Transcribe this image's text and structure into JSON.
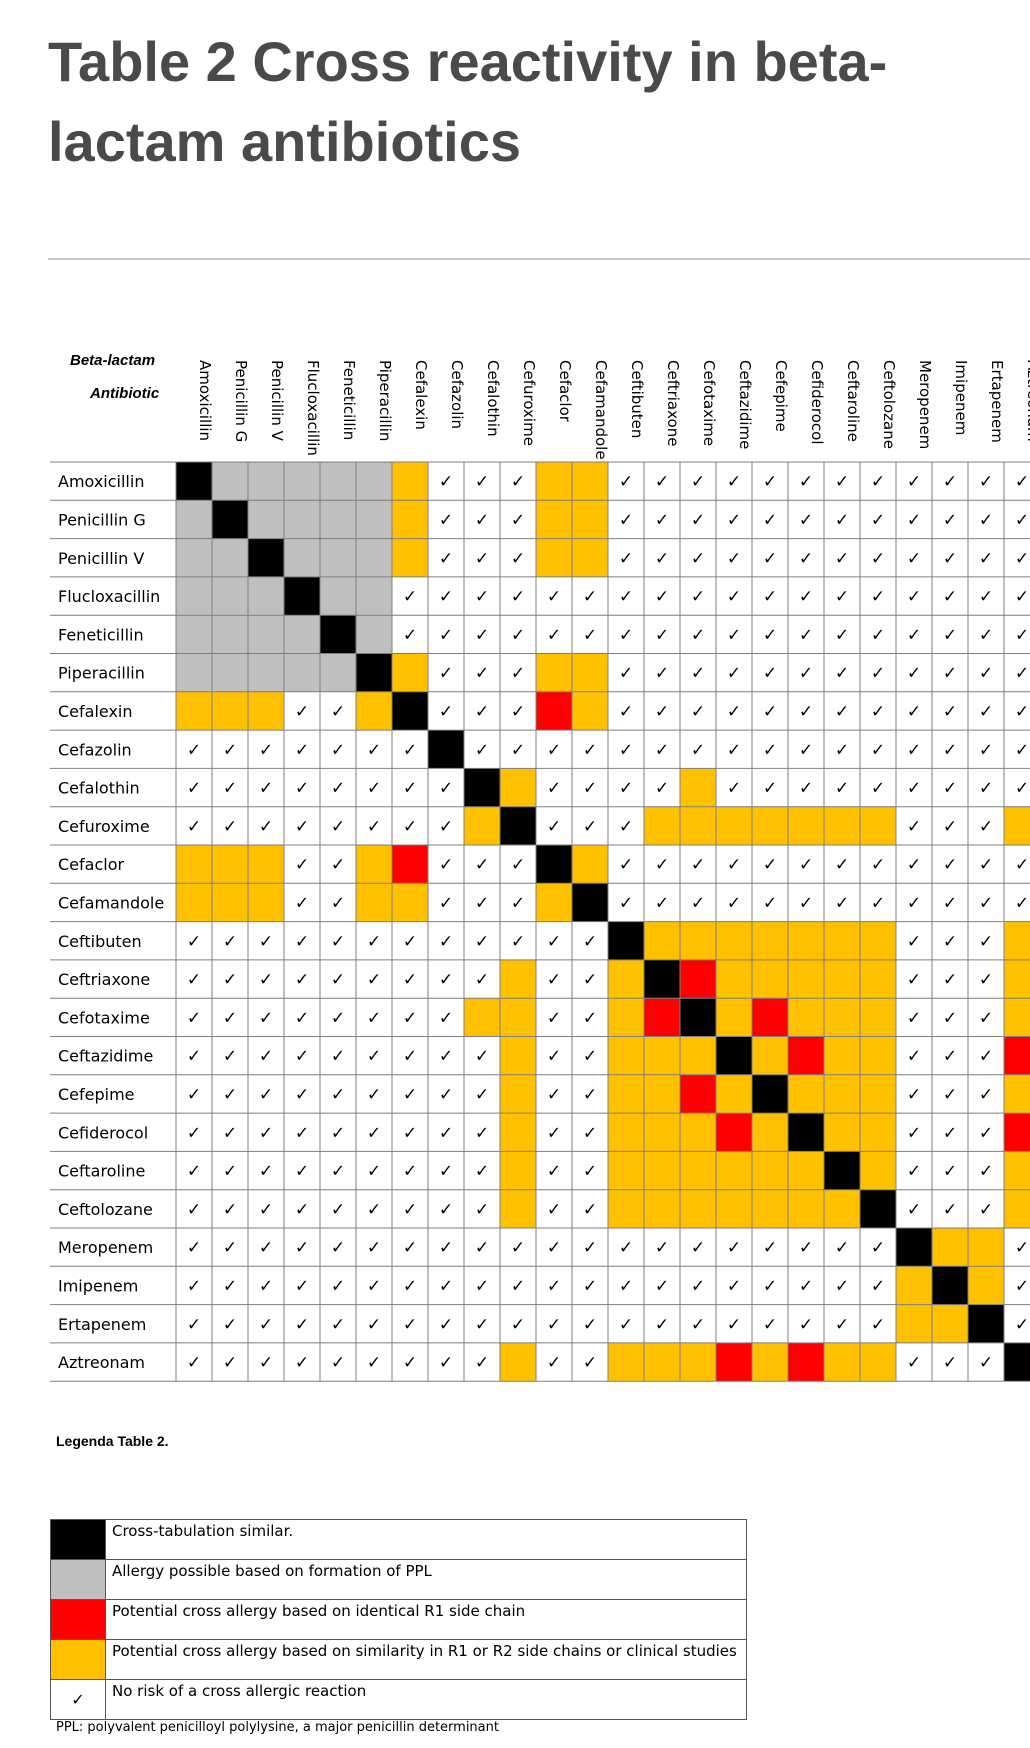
{
  "title": "Table 2  Cross reactivity in beta-lactam antibiotics",
  "corner_label_line1": "Beta-lactam",
  "corner_label_line2": "Antibiotic",
  "drugs": [
    "Amoxicillin",
    "Penicillin G",
    "Penicillin V",
    "Flucloxacillin",
    "Feneticillin",
    "Piperacillin",
    "Cefalexin",
    "Cefazolin",
    "Cefalothin",
    "Cefuroxime",
    "Cefaclor",
    "Cefamandole",
    "Ceftibuten",
    "Ceftriaxone",
    "Cefotaxime",
    "Ceftazidime",
    "Cefepime",
    "Cefiderocol",
    "Ceftaroline",
    "Ceftolozane",
    "Meropenem",
    "Imipenem",
    "Ertapenem",
    "Aztreonam"
  ],
  "category_key": {
    "B": "Cross-tabulation similar",
    "G": "Allergy possible based on formation of PPL",
    "R": "Potential cross allergy based on identical R1 side chain",
    "Y": "Potential cross allergy based on similarity in R1 or R2 side chains or clinical studies",
    "C": "No risk of a cross allergic reaction"
  },
  "matrix": [
    "BGGGGGYCCCYYCCCCCCCCCCCC",
    "GBGGGGYCCCYYCCCCCCCCCCCC",
    "GGBGGGYCCCYYCCCCCCCCCCCC",
    "GGGBGGCCCCCCCCCCCCCCCCCC",
    "GGGGBGCCCCCCCCCCCCCCCCCC",
    "GGGGGBYCCCYYCCCCCCCCCCCC",
    "YYYCCYBCCCRYCCCCCCCCCCCC",
    "CCCCCCCBCCCCCCCCCCCCCCCC",
    "CCCCCCCCBYCCCCYCCCCCCCCC",
    "CCCCCCCCYBCCCYYYYYYYCCCY",
    "YYYCCYRCCCBYCCCCCCCCCCCC",
    "YYYCCYYCCCYBCCCCCCCCCCCC",
    "CCCCCCCCCCCCBYYYYYYYCCCY",
    "CCCCCCCCCYCCYBRYYYYYCCCY",
    "CCCCCCCCYYCCYRBYRYYYCCCY",
    "CCCCCCCCCYCCYYYBYRYYCCCR",
    "CCCCCCCCCYCCYYRYBYYYCCCY",
    "CCCCCCCCCYCCYYYRYBYYCCCR",
    "CCCCCCCCCYCCYYYYYYBYCCCY",
    "CCCCCCCCCYCCYYYYYYYBCCCY",
    "CCCCCCCCCCCCCCCCCCCCBYYC",
    "CCCCCCCCCCCCCCCCCCCCYBYC",
    "CCCCCCCCCCCCCCCCCCCCYYBC",
    "CCCCCCCCCYCCYYYRYRYYCCCB"
  ],
  "colors": {
    "B": "#000000",
    "G": "#bfbfbf",
    "R": "#ff0000",
    "Y": "#ffc000",
    "C": "#ffffff",
    "check": "✓"
  },
  "legend_title": "Legenda Table 2.",
  "legend": [
    {
      "key": "B",
      "text": "Cross-tabulation similar."
    },
    {
      "key": "G",
      "text": "Allergy possible based on formation of PPL"
    },
    {
      "key": "R",
      "text": "Potential cross allergy based on identical R1 side chain"
    },
    {
      "key": "Y",
      "text": "Potential cross allergy based on similarity in R1 or R2 side chains or clinical studies"
    },
    {
      "key": "C",
      "text": "No risk of a cross allergic reaction"
    }
  ],
  "footnote": "PPL: polyvalent penicilloyl polylysine, a major penicillin determinant"
}
